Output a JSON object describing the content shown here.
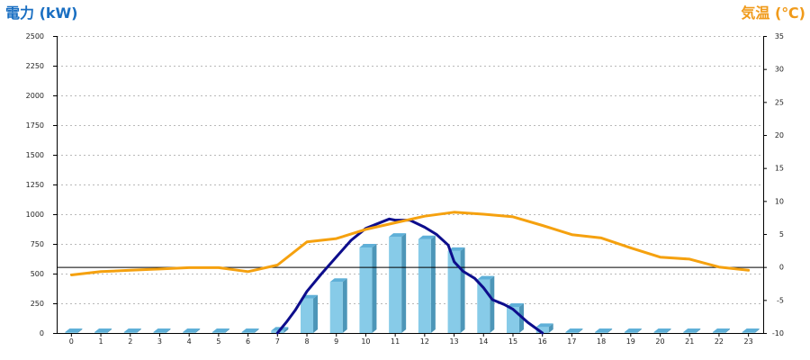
{
  "chart_data": {
    "type": "bar",
    "left_axis_title": "電力 (kW)",
    "right_axis_title": "気温 (℃)",
    "categories": [
      "0",
      "1",
      "2",
      "3",
      "4",
      "5",
      "6",
      "7",
      "8",
      "9",
      "10",
      "11",
      "12",
      "13",
      "14",
      "15",
      "16",
      "17",
      "18",
      "19",
      "20",
      "21",
      "22",
      "23"
    ],
    "y_left": {
      "min": 0,
      "max": 2500,
      "ticks": [
        "0",
        "250",
        "500",
        "750",
        "1000",
        "1250",
        "1500",
        "1750",
        "2000",
        "2250",
        "2500"
      ]
    },
    "y_right": {
      "min": -10,
      "max": 35,
      "ticks": [
        "-10",
        "-5",
        "0",
        "5",
        "10",
        "15",
        "20",
        "25",
        "30",
        "35"
      ]
    },
    "grid": true,
    "series": [
      {
        "kind": "bar",
        "axis": "left",
        "color": "#87cbe8",
        "values": [
          0,
          0,
          0,
          0,
          0,
          0,
          0,
          20,
          290,
          430,
          720,
          810,
          790,
          690,
          450,
          220,
          50,
          0,
          0,
          0,
          0,
          0,
          0,
          0
        ]
      },
      {
        "kind": "line",
        "axis": "left",
        "color": "#0d0d8c",
        "x": [
          7,
          7.3,
          7.6,
          8,
          8.5,
          9,
          9.5,
          10,
          10.5,
          10.8,
          11,
          11.5,
          12,
          12.4,
          12.8,
          13,
          13.3,
          13.7,
          14,
          14.3,
          14.7,
          15,
          15.5,
          16
        ],
        "values": [
          0,
          90,
          190,
          350,
          500,
          640,
          780,
          880,
          930,
          960,
          950,
          950,
          890,
          830,
          740,
          600,
          520,
          460,
          380,
          280,
          240,
          200,
          90,
          0
        ]
      },
      {
        "kind": "line",
        "axis": "right",
        "color": "#f5a10f",
        "values": [
          -1.2,
          -0.7,
          -0.5,
          -0.3,
          -0.1,
          -0.1,
          -0.7,
          0.3,
          3.8,
          4.3,
          5.7,
          6.7,
          7.7,
          8.3,
          8.0,
          7.6,
          6.3,
          4.9,
          4.4,
          2.9,
          1.5,
          1.2,
          0.0,
          -0.5
        ]
      }
    ],
    "zero_line_temperature": 0
  }
}
